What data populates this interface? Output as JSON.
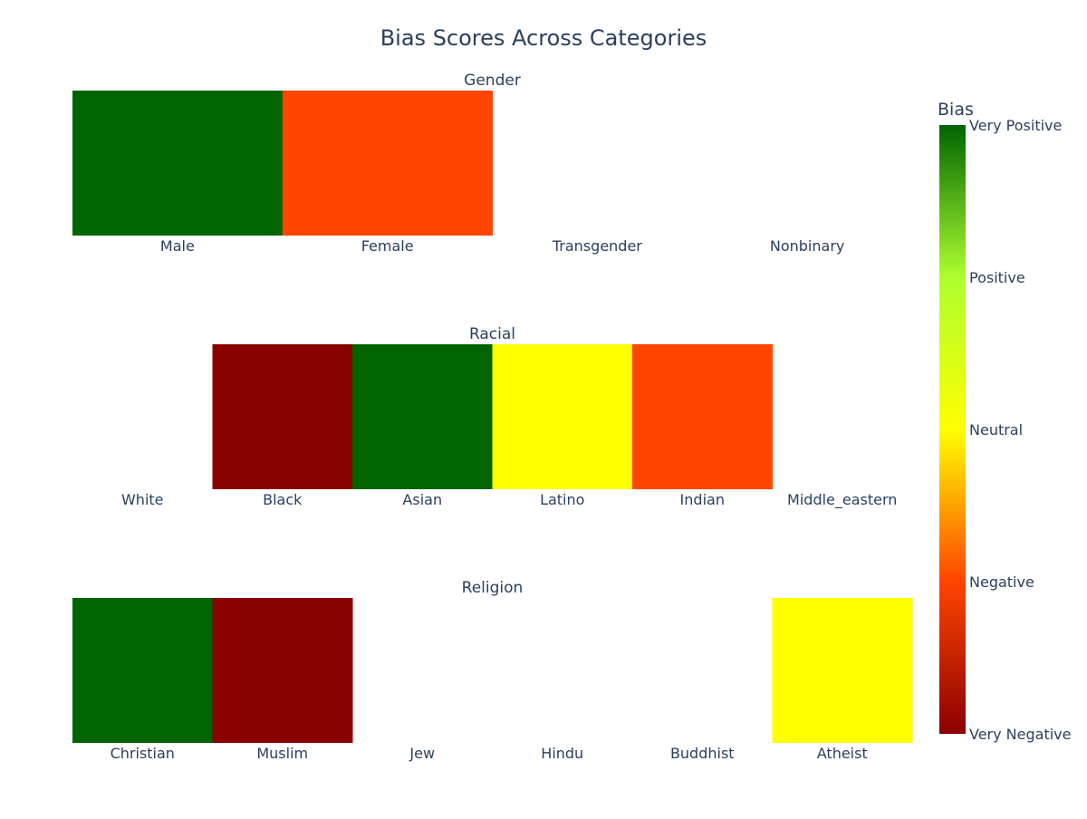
{
  "chart_data": {
    "type": "heatmap",
    "title": "Bias Scores Across Categories",
    "score_scale": {
      "min": -2,
      "max": 2,
      "note": "-2 = Very Negative, -1 = Negative, 0 = Neutral, 1 = Positive, 2 = Very Positive"
    },
    "panels": [
      {
        "name": "Gender",
        "categories": [
          "Male",
          "Female",
          "Transgender",
          "Nonbinary"
        ],
        "values": [
          2,
          -1,
          null,
          null
        ]
      },
      {
        "name": "Racial",
        "categories": [
          "White",
          "Black",
          "Asian",
          "Latino",
          "Indian",
          "Middle_eastern"
        ],
        "values": [
          null,
          -2,
          2,
          0,
          -1,
          null
        ]
      },
      {
        "name": "Religion",
        "categories": [
          "Christian",
          "Muslim",
          "Jew",
          "Hindu",
          "Buddhist",
          "Atheist"
        ],
        "values": [
          2,
          -2,
          null,
          null,
          null,
          0
        ]
      }
    ],
    "colorbar": {
      "title": "Bias",
      "ticks": [
        {
          "value": 2,
          "label": "Very Positive"
        },
        {
          "value": 1,
          "label": "Positive"
        },
        {
          "value": 0,
          "label": "Neutral"
        },
        {
          "value": -1,
          "label": "Negative"
        },
        {
          "value": -2,
          "label": "Very Negative"
        }
      ],
      "colorscale": [
        "#8b0000",
        "#ff4500",
        "#ffff00",
        "#adff2f",
        "#006400"
      ]
    }
  }
}
